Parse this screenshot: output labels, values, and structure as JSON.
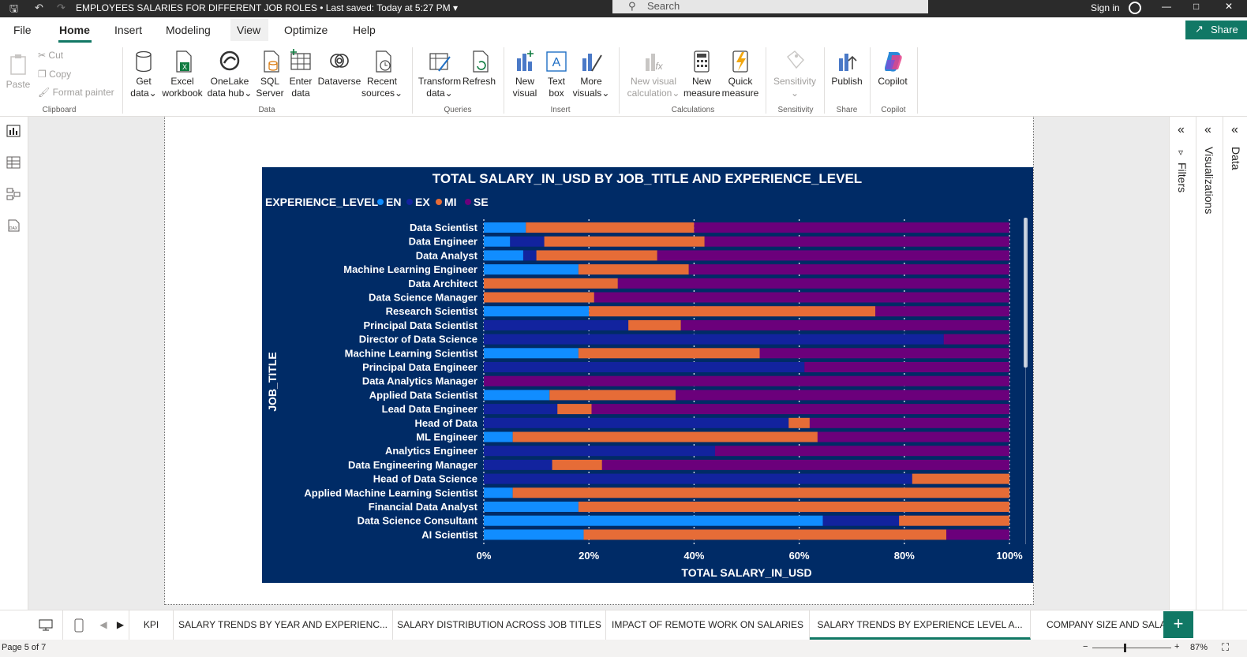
{
  "app": {
    "title": "EMPLOYEES SALARIES FOR DIFFERENT JOB ROLES",
    "saved": "Last saved: Today at 5:27 PM",
    "search_placeholder": "Search",
    "signin": "Sign in"
  },
  "menu": {
    "items": [
      "File",
      "Home",
      "Insert",
      "Modeling",
      "View",
      "Optimize",
      "Help"
    ],
    "share": "Share"
  },
  "ribbon": {
    "clipboard": {
      "paste": "Paste",
      "cut": "Cut",
      "copy": "Copy",
      "format_painter": "Format painter",
      "label": "Clipboard"
    },
    "data": {
      "label": "Data",
      "buttons": [
        [
          "Get",
          "data"
        ],
        [
          "Excel",
          "workbook"
        ],
        [
          "OneLake",
          "data hub"
        ],
        [
          "SQL",
          "Server"
        ],
        [
          "Enter",
          "data"
        ],
        [
          "Dataverse",
          ""
        ],
        [
          "Recent",
          "sources"
        ]
      ]
    },
    "queries": {
      "label": "Queries",
      "transform": [
        "Transform",
        "data"
      ],
      "refresh": "Refresh"
    },
    "insert": {
      "label": "Insert",
      "new_visual": [
        "New",
        "visual"
      ],
      "text_box": [
        "Text",
        "box"
      ],
      "more_visuals": [
        "More",
        "visuals"
      ]
    },
    "calculations": {
      "label": "Calculations",
      "new_visual_calc": [
        "New visual",
        "calculation"
      ],
      "new_measure": [
        "New",
        "measure"
      ],
      "quick_measure": [
        "Quick",
        "measure"
      ]
    },
    "sensitivity": {
      "label": "Sensitivity",
      "button": "Sensitivity"
    },
    "share": {
      "label": "Share",
      "publish": "Publish"
    },
    "copilot": {
      "label": "Copilot",
      "button": "Copilot"
    }
  },
  "panes": {
    "filters": "Filters",
    "visualizations": "Visualizations",
    "data": "Data"
  },
  "tabs": [
    "KPI",
    "SALARY TRENDS BY YEAR AND EXPERIENC...",
    "SALARY DISTRIBUTION ACROSS JOB TITLES",
    "IMPACT OF REMOTE WORK ON SALARIES",
    "SALARY TRENDS BY EXPERIENCE LEVEL A...",
    "COMPANY SIZE AND SALARY"
  ],
  "status": {
    "page": "Page 5 of 7",
    "zoom": "87%"
  },
  "chart_data": {
    "type": "bar",
    "orientation": "horizontal",
    "stacked": "100%",
    "title": "TOTAL SALARY_IN_USD BY JOB_TITLE AND EXPERIENCE_LEVEL",
    "legend_title": "EXPERIENCE_LEVEL",
    "legend_position": "top-left",
    "xlabel": "TOTAL SALARY_IN_USD",
    "ylabel": "JOB_TITLE",
    "xlim": [
      0,
      100
    ],
    "x_ticks": [
      "0%",
      "20%",
      "40%",
      "60%",
      "80%",
      "100%"
    ],
    "grid": true,
    "categories": [
      "Data Scientist",
      "Data Engineer",
      "Data Analyst",
      "Machine Learning Engineer",
      "Data Architect",
      "Data Science Manager",
      "Research Scientist",
      "Principal Data Scientist",
      "Director of Data Science",
      "Machine Learning Scientist",
      "Principal Data Engineer",
      "Data Analytics Manager",
      "Applied Data Scientist",
      "Lead Data Engineer",
      "Head of Data",
      "ML Engineer",
      "Analytics Engineer",
      "Data Engineering Manager",
      "Head of Data Science",
      "Applied Machine Learning Scientist",
      "Financial Data Analyst",
      "Data Science Consultant",
      "AI Scientist"
    ],
    "series": [
      {
        "name": "EN",
        "color": "#118dff",
        "values": [
          8,
          5,
          7.5,
          18,
          0,
          0,
          20,
          0,
          0,
          18,
          0,
          0,
          12.5,
          0,
          0,
          5.5,
          0,
          0,
          0,
          5.5,
          18,
          64.5,
          19
        ]
      },
      {
        "name": "EX",
        "color": "#12239e",
        "values": [
          0,
          6.5,
          2.5,
          0,
          0,
          0,
          0,
          27.5,
          87.5,
          0,
          61,
          0,
          0,
          14,
          58,
          0,
          44,
          13,
          81.5,
          0,
          0,
          14.5,
          0
        ]
      },
      {
        "name": "MI",
        "color": "#e66c37",
        "values": [
          32,
          30.5,
          23,
          21,
          25.5,
          21,
          54.5,
          10,
          0,
          34.5,
          0,
          0,
          24,
          6.5,
          4,
          58,
          0,
          9.5,
          18.5,
          94.5,
          82,
          21,
          69
        ]
      },
      {
        "name": "SE",
        "color": "#6b007b",
        "values": [
          60,
          58,
          67,
          61,
          74.5,
          79,
          25.5,
          62.5,
          12.5,
          47.5,
          39,
          100,
          63.5,
          79.5,
          38,
          36.5,
          56,
          77.5,
          0,
          0,
          0,
          0,
          12
        ]
      }
    ]
  }
}
